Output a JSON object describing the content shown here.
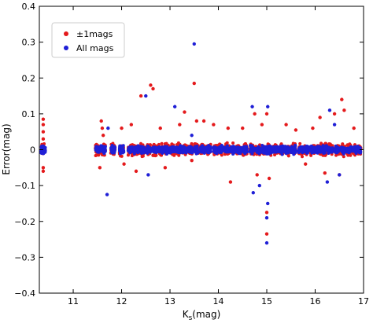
{
  "chart_data": {
    "type": "scatter",
    "xlabel": "K",
    "xlabel_sub": "s",
    "xlabel_unit": "(mag)",
    "ylabel": "Error(mag)",
    "xlim": [
      10.3,
      17.0
    ],
    "ylim": [
      -0.4,
      0.4
    ],
    "xticks": [
      "11",
      "12",
      "13",
      "14",
      "15",
      "16",
      "17"
    ],
    "yticks": [
      "0.4",
      "0.3",
      "0.2",
      "0.1",
      "0",
      "−0.1",
      "−0.2",
      "−0.3",
      "−0.4"
    ],
    "legend": {
      "placement": "top-left"
    },
    "series": [
      {
        "name": "±1mags",
        "color": "#e41a1c",
        "points": [
          [
            10.38,
            0.085
          ],
          [
            10.38,
            0.07
          ],
          [
            10.38,
            0.05
          ],
          [
            10.38,
            -0.05
          ],
          [
            10.38,
            -0.06
          ],
          [
            10.38,
            0.03
          ],
          [
            11.58,
            0.08
          ],
          [
            11.6,
            0.06
          ],
          [
            11.55,
            -0.05
          ],
          [
            11.62,
            0.04
          ],
          [
            12.0,
            0.06
          ],
          [
            12.05,
            -0.04
          ],
          [
            12.2,
            0.07
          ],
          [
            12.3,
            -0.06
          ],
          [
            12.4,
            0.15
          ],
          [
            12.6,
            0.18
          ],
          [
            12.65,
            0.17
          ],
          [
            12.8,
            0.06
          ],
          [
            12.9,
            -0.05
          ],
          [
            13.3,
            0.105
          ],
          [
            13.2,
            0.07
          ],
          [
            13.5,
            0.185
          ],
          [
            13.55,
            0.08
          ],
          [
            13.45,
            -0.03
          ],
          [
            13.7,
            0.08
          ],
          [
            13.9,
            0.07
          ],
          [
            14.2,
            0.06
          ],
          [
            14.5,
            0.06
          ],
          [
            14.25,
            -0.09
          ],
          [
            14.75,
            0.1
          ],
          [
            14.8,
            -0.07
          ],
          [
            14.9,
            0.07
          ],
          [
            15.0,
            0.1
          ],
          [
            15.0,
            -0.175
          ],
          [
            15.0,
            -0.235
          ],
          [
            15.05,
            -0.08
          ],
          [
            15.4,
            0.07
          ],
          [
            15.6,
            0.055
          ],
          [
            15.8,
            -0.04
          ],
          [
            15.95,
            0.06
          ],
          [
            16.1,
            0.09
          ],
          [
            16.2,
            -0.065
          ],
          [
            16.4,
            0.1
          ],
          [
            16.55,
            0.14
          ],
          [
            16.6,
            0.11
          ],
          [
            16.5,
            -0.07
          ],
          [
            16.8,
            0.06
          ]
        ]
      },
      {
        "name": "All mags",
        "color": "#1f1fd6",
        "points": [
          [
            10.38,
            0.01
          ],
          [
            10.38,
            -0.01
          ],
          [
            11.7,
            -0.125
          ],
          [
            11.72,
            0.06
          ],
          [
            12.5,
            0.15
          ],
          [
            12.55,
            -0.07
          ],
          [
            13.5,
            0.295
          ],
          [
            13.1,
            0.12
          ],
          [
            13.45,
            0.04
          ],
          [
            14.7,
            0.12
          ],
          [
            14.72,
            -0.12
          ],
          [
            14.85,
            -0.1
          ],
          [
            15.0,
            -0.26
          ],
          [
            15.02,
            0.12
          ],
          [
            15.0,
            -0.19
          ],
          [
            15.02,
            -0.15
          ],
          [
            16.3,
            0.11
          ],
          [
            16.25,
            -0.09
          ],
          [
            16.5,
            -0.07
          ],
          [
            16.4,
            0.07
          ]
        ]
      }
    ],
    "dense_bands": [
      10.38,
      11.5,
      11.62,
      11.82,
      12.0,
      12.18,
      12.3,
      12.42,
      12.55,
      12.68,
      12.8,
      12.92,
      13.05,
      13.18,
      13.3,
      13.42,
      13.55,
      13.68,
      13.8,
      13.95,
      14.05,
      14.18,
      14.3,
      14.42,
      14.55,
      14.7,
      14.82,
      14.95,
      15.05,
      15.18,
      15.3,
      15.42,
      15.55,
      15.7,
      15.82,
      15.95,
      16.08,
      16.2,
      16.32,
      16.45,
      16.58,
      16.7,
      16.82,
      16.9
    ]
  }
}
